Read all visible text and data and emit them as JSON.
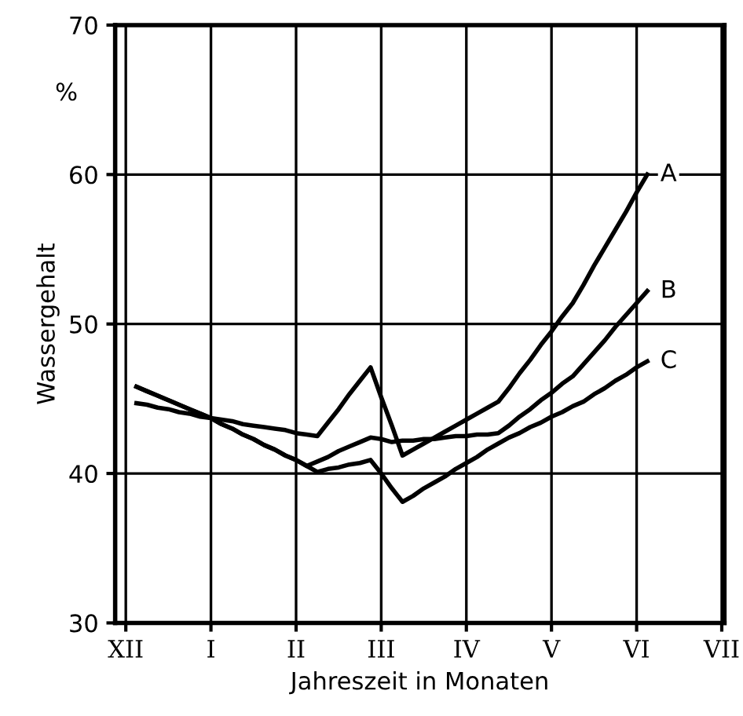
{
  "chart_data": {
    "type": "line",
    "xlabel": "Jahreszeit in Monaten",
    "ylabel": "Wassergehalt",
    "annotations": [
      "%"
    ],
    "categories": [
      "XII",
      null,
      null,
      null,
      null,
      null,
      null,
      null,
      "I",
      null,
      null,
      null,
      null,
      null,
      null,
      null,
      "II",
      null,
      null,
      null,
      null,
      null,
      null,
      null,
      "III",
      null,
      null,
      null,
      null,
      null,
      null,
      null,
      "IV",
      null,
      null,
      null,
      null,
      null,
      null,
      null,
      "V",
      null,
      null,
      null,
      null,
      null,
      null,
      null,
      "VI",
      null,
      null,
      null,
      null,
      null,
      null,
      null,
      "VII"
    ],
    "ylim": [
      30,
      70
    ],
    "yticks": [
      30,
      40,
      50,
      60,
      70
    ],
    "grid": true,
    "legend": false,
    "marker": "none",
    "line_style": "solid",
    "series": [
      {
        "name": "A",
        "color": "#000000",
        "values": [
          null,
          44.7,
          44.6,
          44.4,
          44.3,
          44.1,
          44.0,
          43.8,
          43.7,
          43.6,
          43.5,
          43.3,
          43.2,
          43.1,
          43.0,
          42.9,
          42.7,
          42.6,
          42.5,
          43.4,
          44.3,
          45.3,
          46.2,
          47.1,
          45.1,
          43.2,
          41.2,
          41.6,
          42.0,
          42.4,
          42.8,
          43.2,
          43.6,
          44.0,
          44.4,
          44.8,
          45.7,
          46.7,
          47.6,
          48.6,
          49.5,
          50.5,
          51.4,
          52.6,
          53.9,
          55.1,
          56.3,
          57.5,
          58.8,
          60.0,
          null,
          null,
          null,
          null,
          null,
          null,
          null
        ]
      },
      {
        "name": "B",
        "color": "#000000",
        "values": [
          null,
          45.8,
          45.5,
          45.2,
          44.9,
          44.6,
          44.3,
          44.0,
          43.7,
          43.3,
          43.0,
          42.6,
          42.3,
          41.9,
          41.6,
          41.2,
          40.9,
          40.5,
          40.8,
          41.1,
          41.5,
          41.8,
          42.1,
          42.4,
          42.3,
          42.1,
          42.2,
          42.2,
          42.3,
          42.3,
          42.4,
          42.5,
          42.5,
          42.6,
          42.6,
          42.7,
          43.2,
          43.8,
          44.3,
          44.9,
          45.4,
          46.0,
          46.5,
          47.3,
          48.1,
          48.9,
          49.8,
          50.6,
          51.4,
          52.2,
          null,
          null,
          null,
          null,
          null,
          null,
          null
        ]
      },
      {
        "name": "C",
        "color": "#000000",
        "values": [
          null,
          45.8,
          45.5,
          45.2,
          44.9,
          44.6,
          44.3,
          44.0,
          43.7,
          43.3,
          43.0,
          42.6,
          42.3,
          41.9,
          41.6,
          41.2,
          40.9,
          40.5,
          40.1,
          40.3,
          40.4,
          40.6,
          40.7,
          40.9,
          40.0,
          39.0,
          38.1,
          38.5,
          39.0,
          39.4,
          39.8,
          40.3,
          40.7,
          41.1,
          41.6,
          42.0,
          42.4,
          42.7,
          43.1,
          43.4,
          43.8,
          44.1,
          44.5,
          44.8,
          45.3,
          45.7,
          46.2,
          46.6,
          47.1,
          47.5,
          null,
          null,
          null,
          null,
          null,
          null,
          null
        ]
      }
    ]
  }
}
